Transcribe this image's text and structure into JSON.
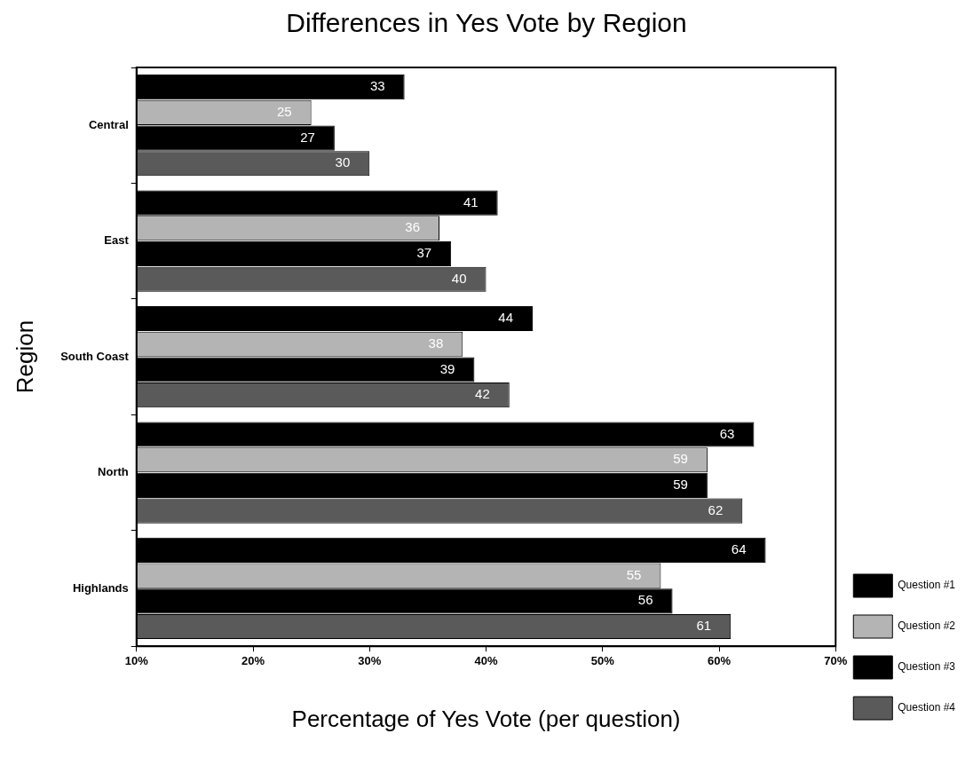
{
  "chart_data": {
    "type": "bar",
    "orientation": "horizontal",
    "title": "Differences in Yes Vote by Region",
    "xlabel": "Percentage of Yes Vote (per question)",
    "ylabel": "Region",
    "categories": [
      "Central",
      "East",
      "South Coast",
      "North",
      "Highlands"
    ],
    "series": [
      {
        "name": "Question #1",
        "color": "#000000",
        "values": [
          33,
          41,
          44,
          63,
          64
        ]
      },
      {
        "name": "Question #2",
        "color": "#b4b4b4",
        "values": [
          25,
          36,
          38,
          59,
          55
        ]
      },
      {
        "name": "Question #3",
        "color": "#000000",
        "values": [
          27,
          37,
          39,
          59,
          56
        ]
      },
      {
        "name": "Question #4",
        "color": "#5a5a5a",
        "values": [
          30,
          40,
          42,
          62,
          61
        ]
      }
    ],
    "xlim": [
      10,
      70
    ],
    "xticks": [
      {
        "value": 10,
        "label": "10%"
      },
      {
        "value": 20,
        "label": "20%"
      },
      {
        "value": 30,
        "label": "30%"
      },
      {
        "value": 40,
        "label": "40%"
      },
      {
        "value": 50,
        "label": "50%"
      },
      {
        "value": 60,
        "label": "60%"
      },
      {
        "value": 70,
        "label": "70%"
      }
    ],
    "data_labels": true,
    "grid": false,
    "legend": "bottom right"
  }
}
